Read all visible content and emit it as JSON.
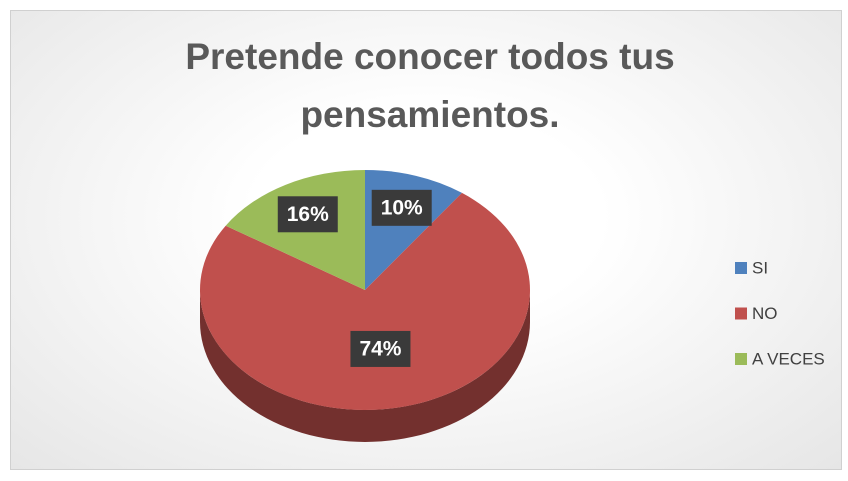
{
  "chart_data": {
    "type": "pie",
    "title": "Pretende conocer todos tus pensamientos.",
    "categories": [
      "SI",
      "NO",
      "A VECES"
    ],
    "values": [
      10,
      74,
      16
    ],
    "value_labels": [
      "10%",
      "74%",
      "16%"
    ],
    "colors": [
      "#4f81bd",
      "#c0504d",
      "#9bbb59"
    ],
    "legend": "right"
  }
}
